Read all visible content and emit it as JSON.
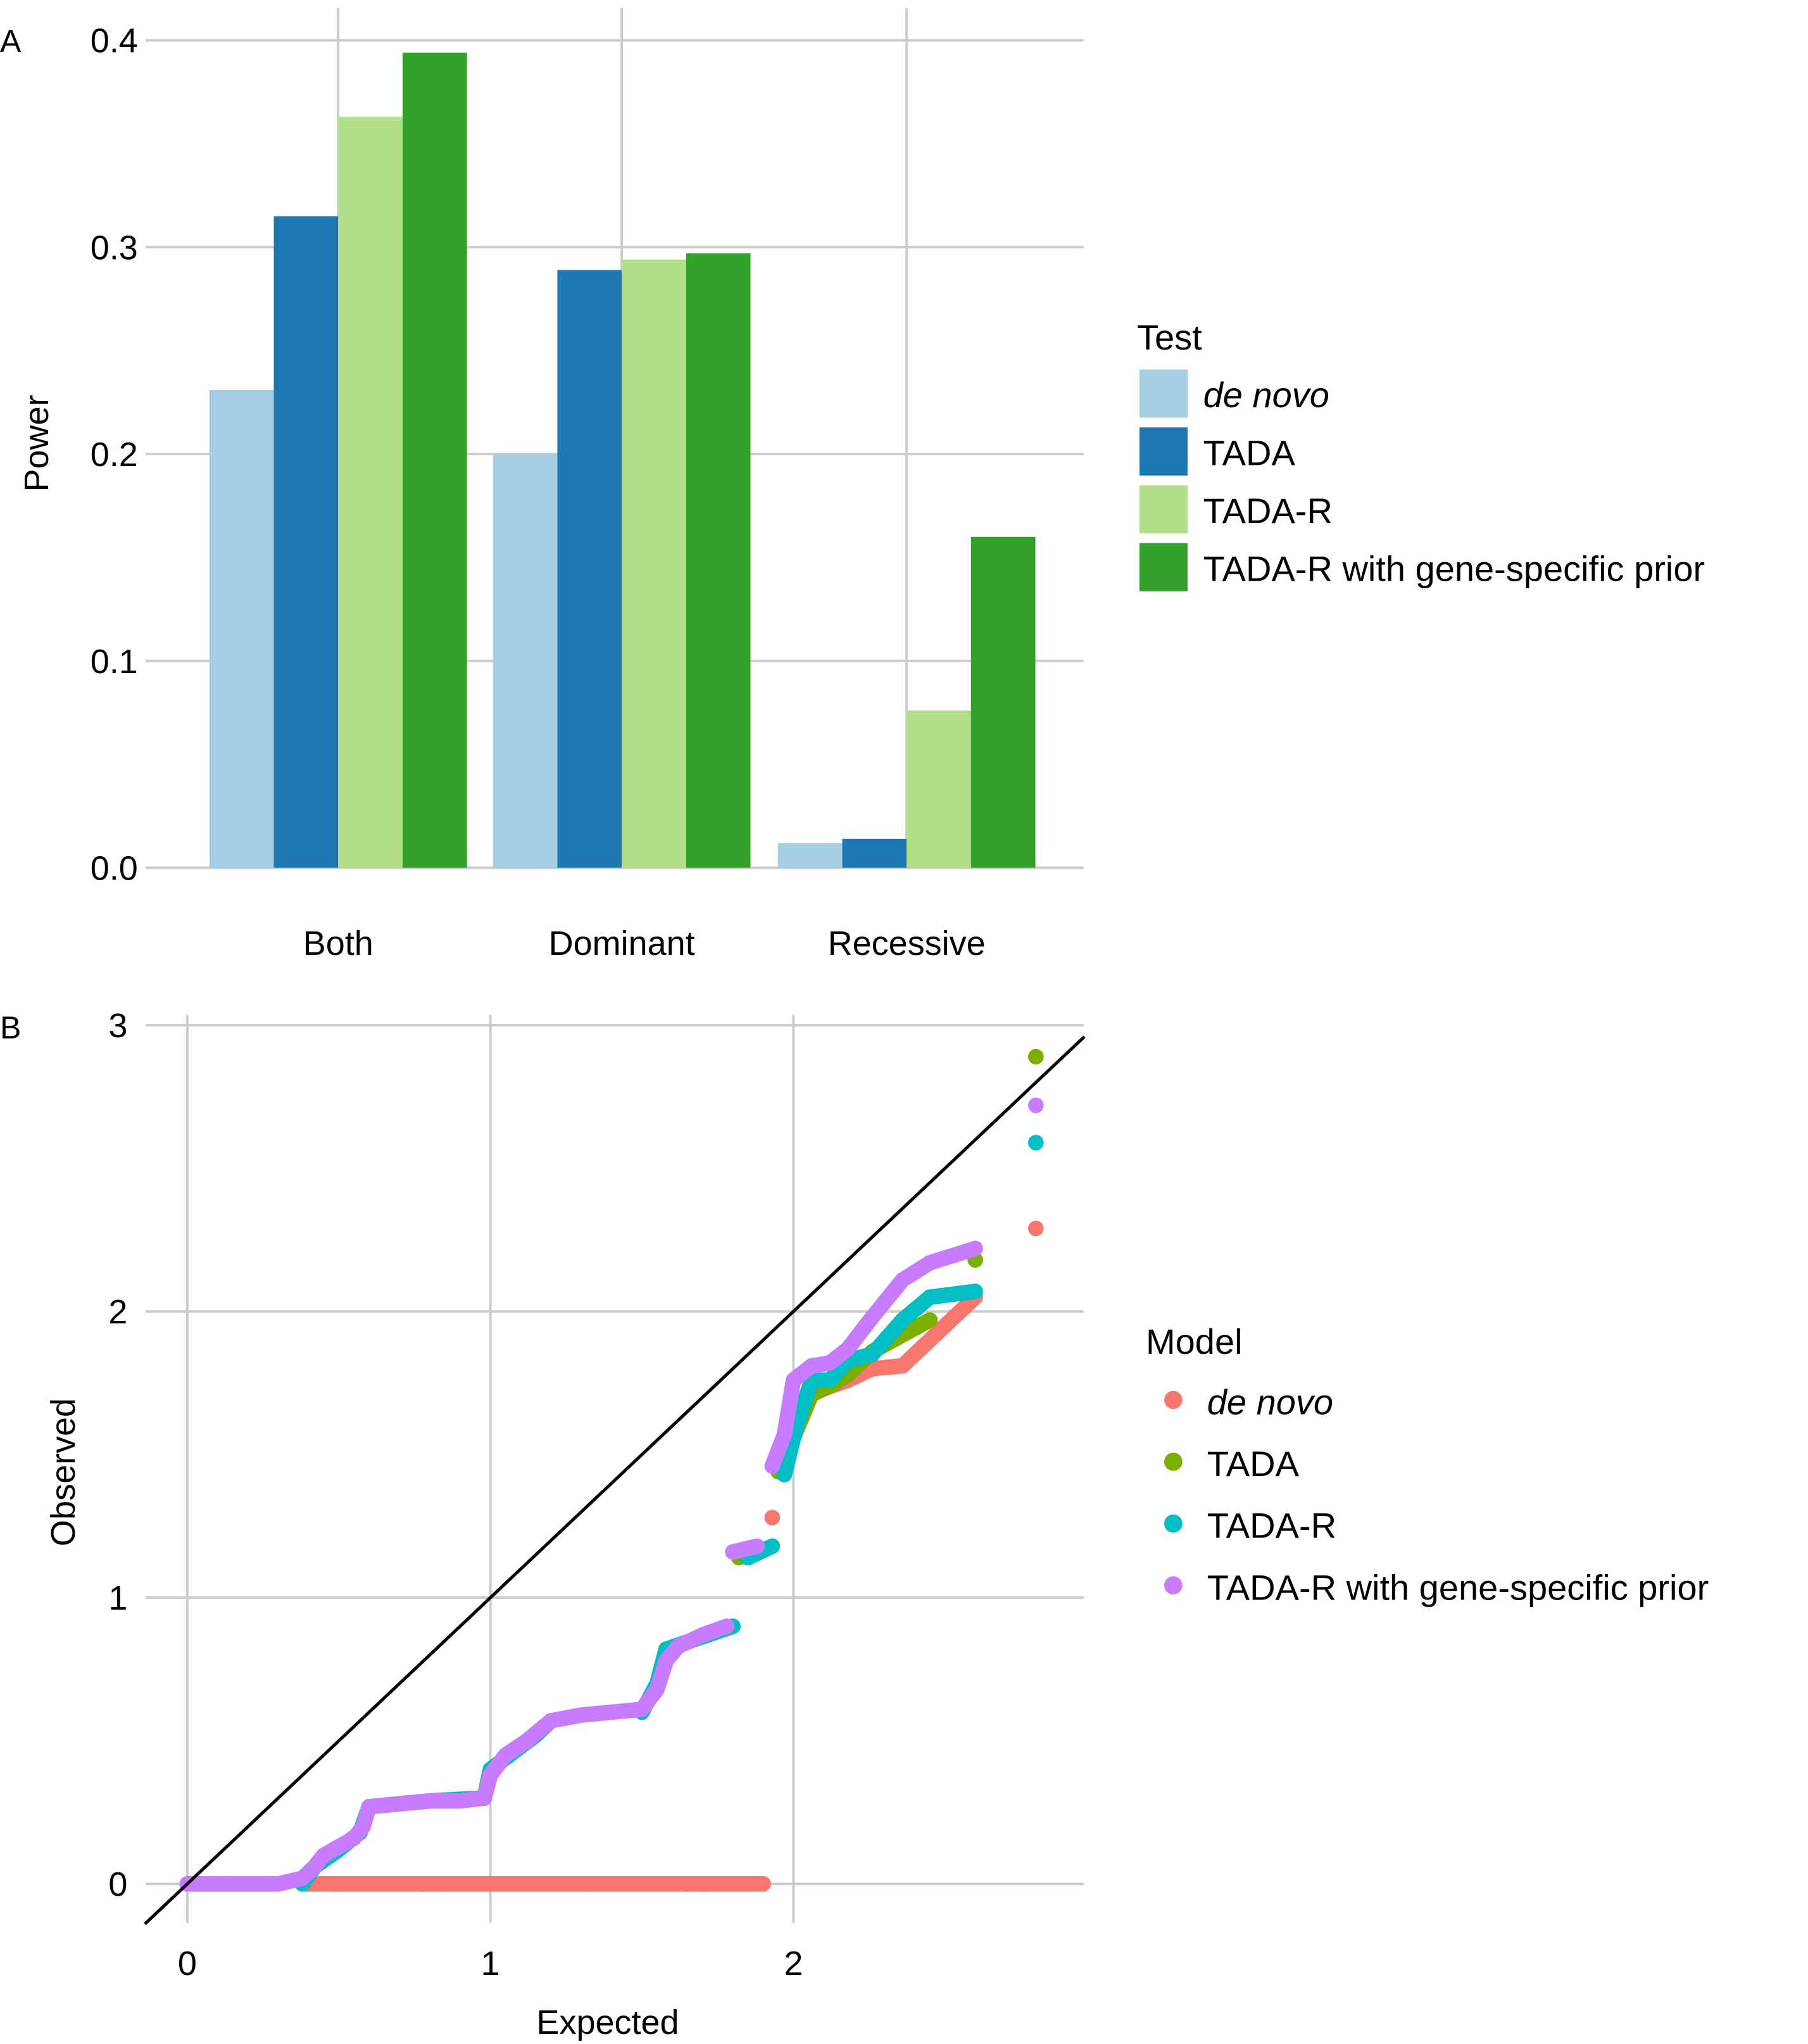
{
  "chart_data": [
    {
      "panel": "A",
      "type": "bar",
      "title": "",
      "xlabel": "",
      "ylabel": "Power",
      "ylim": [
        0,
        0.4
      ],
      "yticks": [
        "0.0",
        "0.1",
        "0.2",
        "0.3",
        "0.4"
      ],
      "grid": true,
      "categories": [
        "Both",
        "Dominant",
        "Recessive"
      ],
      "legend": {
        "title": "Test",
        "placement": "right"
      },
      "series": [
        {
          "name": "de novo",
          "italic": true,
          "color": "#a6cee3",
          "values": [
            0.231,
            0.2,
            0.012
          ]
        },
        {
          "name": "TADA",
          "italic": false,
          "color": "#1f78b4",
          "values": [
            0.315,
            0.289,
            0.014
          ]
        },
        {
          "name": "TADA-R",
          "italic": false,
          "color": "#b2df8a",
          "values": [
            0.363,
            0.294,
            0.076
          ]
        },
        {
          "name": "TADA-R with gene-specific prior",
          "italic": false,
          "color": "#33a02c",
          "values": [
            0.394,
            0.297,
            0.16
          ]
        }
      ]
    },
    {
      "panel": "B",
      "type": "scatter",
      "title": "",
      "xlabel": "Expected",
      "ylabel": "Observed",
      "xlim": [
        -0.13,
        2.95
      ],
      "ylim": [
        -0.15,
        3.03
      ],
      "xticks": [
        "0",
        "1",
        "2"
      ],
      "yticks": [
        "0",
        "1",
        "2",
        "3"
      ],
      "grid": true,
      "reference_line": "y = x",
      "legend": {
        "title": "Model",
        "placement": "right"
      },
      "series": [
        {
          "name": "de novo",
          "italic": true,
          "color": "#f8766d",
          "points": [
            [
              0.38,
              0.0
            ],
            [
              0.5,
              0.0
            ],
            [
              0.7,
              0.0
            ],
            [
              0.9,
              0.0
            ],
            [
              1.1,
              0.0
            ],
            [
              1.3,
              0.0
            ],
            [
              1.5,
              0.0
            ],
            [
              1.7,
              0.0
            ],
            [
              1.9,
              0.0
            ],
            [
              1.93,
              1.28
            ],
            [
              1.97,
              1.55
            ],
            [
              2.06,
              1.71
            ],
            [
              2.1,
              1.73
            ],
            [
              2.18,
              1.76
            ],
            [
              2.26,
              1.8
            ],
            [
              2.36,
              1.81
            ],
            [
              2.45,
              1.9
            ],
            [
              2.6,
              2.05
            ],
            [
              2.8,
              2.29
            ]
          ]
        },
        {
          "name": "TADA",
          "italic": false,
          "color": "#7cae00",
          "points": [
            [
              0.0,
              0.0
            ],
            [
              0.38,
              0.0
            ],
            [
              0.42,
              0.06
            ],
            [
              0.5,
              0.12
            ],
            [
              0.57,
              0.18
            ],
            [
              0.6,
              0.27
            ],
            [
              0.8,
              0.29
            ],
            [
              0.98,
              0.3
            ],
            [
              1.0,
              0.4
            ],
            [
              1.15,
              0.52
            ],
            [
              1.2,
              0.57
            ],
            [
              1.5,
              0.6
            ],
            [
              1.55,
              0.7
            ],
            [
              1.58,
              0.82
            ],
            [
              1.8,
              0.9
            ],
            [
              1.82,
              1.14
            ],
            [
              1.9,
              1.17
            ],
            [
              1.95,
              1.44
            ],
            [
              2.0,
              1.56
            ],
            [
              2.06,
              1.71
            ],
            [
              2.12,
              1.74
            ],
            [
              2.18,
              1.78
            ],
            [
              2.26,
              1.86
            ],
            [
              2.45,
              1.97
            ],
            [
              2.6,
              2.18
            ],
            [
              2.8,
              2.89
            ]
          ]
        },
        {
          "name": "TADA-R",
          "italic": false,
          "color": "#00bfc4",
          "points": [
            [
              0.0,
              0.0
            ],
            [
              0.38,
              0.0
            ],
            [
              0.42,
              0.06
            ],
            [
              0.5,
              0.12
            ],
            [
              0.57,
              0.18
            ],
            [
              0.6,
              0.27
            ],
            [
              0.8,
              0.29
            ],
            [
              0.98,
              0.3
            ],
            [
              1.0,
              0.4
            ],
            [
              1.15,
              0.52
            ],
            [
              1.2,
              0.57
            ],
            [
              1.5,
              0.6
            ],
            [
              1.55,
              0.7
            ],
            [
              1.58,
              0.82
            ],
            [
              1.8,
              0.9
            ],
            [
              1.85,
              1.14
            ],
            [
              1.93,
              1.18
            ],
            [
              1.97,
              1.43
            ],
            [
              2.01,
              1.6
            ],
            [
              2.06,
              1.76
            ],
            [
              2.12,
              1.76
            ],
            [
              2.18,
              1.83
            ],
            [
              2.26,
              1.85
            ],
            [
              2.36,
              1.97
            ],
            [
              2.45,
              2.05
            ],
            [
              2.6,
              2.07
            ],
            [
              2.8,
              2.59
            ]
          ]
        },
        {
          "name": "TADA-R with gene-specific prior",
          "italic": false,
          "color": "#c77cff",
          "points": [
            [
              0.0,
              0.0
            ],
            [
              0.1,
              0.0
            ],
            [
              0.2,
              0.0
            ],
            [
              0.3,
              0.0
            ],
            [
              0.38,
              0.02
            ],
            [
              0.42,
              0.06
            ],
            [
              0.45,
              0.1
            ],
            [
              0.5,
              0.13
            ],
            [
              0.55,
              0.16
            ],
            [
              0.58,
              0.2
            ],
            [
              0.6,
              0.27
            ],
            [
              0.7,
              0.28
            ],
            [
              0.8,
              0.29
            ],
            [
              0.9,
              0.29
            ],
            [
              0.98,
              0.3
            ],
            [
              1.0,
              0.38
            ],
            [
              1.05,
              0.45
            ],
            [
              1.12,
              0.5
            ],
            [
              1.2,
              0.57
            ],
            [
              1.3,
              0.59
            ],
            [
              1.4,
              0.6
            ],
            [
              1.5,
              0.61
            ],
            [
              1.55,
              0.68
            ],
            [
              1.58,
              0.78
            ],
            [
              1.62,
              0.83
            ],
            [
              1.7,
              0.87
            ],
            [
              1.78,
              0.9
            ],
            [
              1.8,
              1.16
            ],
            [
              1.88,
              1.18
            ],
            [
              1.93,
              1.46
            ],
            [
              1.97,
              1.57
            ],
            [
              2.0,
              1.76
            ],
            [
              2.06,
              1.81
            ],
            [
              2.12,
              1.82
            ],
            [
              2.18,
              1.87
            ],
            [
              2.26,
              1.98
            ],
            [
              2.36,
              2.11
            ],
            [
              2.45,
              2.17
            ],
            [
              2.6,
              2.22
            ],
            [
              2.8,
              2.72
            ]
          ]
        }
      ]
    }
  ],
  "panels": {
    "A": {
      "label": "A",
      "ylabel": "Power",
      "yticks": [
        "0.0",
        "0.1",
        "0.2",
        "0.3",
        "0.4"
      ],
      "categories": [
        "Both",
        "Dominant",
        "Recessive"
      ],
      "legend_title": "Test",
      "legend_items": [
        "de novo",
        "TADA",
        "TADA-R",
        "TADA-R with gene-specific prior"
      ]
    },
    "B": {
      "label": "B",
      "xlabel": "Expected",
      "ylabel": "Observed",
      "xticks": [
        "0",
        "1",
        "2"
      ],
      "yticks": [
        "0",
        "1",
        "2",
        "3"
      ],
      "legend_title": "Model",
      "legend_items": [
        "de novo",
        "TADA",
        "TADA-R",
        "TADA-R with gene-specific prior"
      ]
    }
  }
}
